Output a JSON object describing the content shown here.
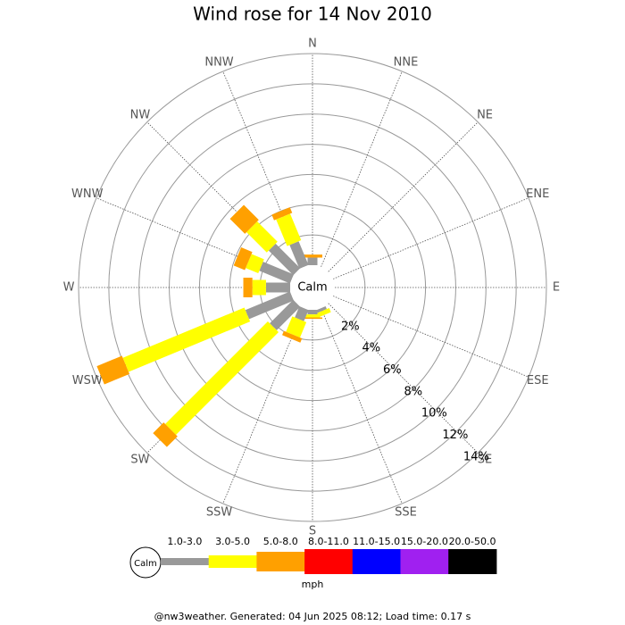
{
  "chart_data": {
    "type": "windrose",
    "title": "Wind rose for 14 Nov 2010",
    "center_label": "Calm",
    "unit": "mph",
    "footer": "@nw3weather. Generated: 04 Jun 2025 08:12; Load time: 0.17 s",
    "directions": [
      "N",
      "NNE",
      "NE",
      "ENE",
      "E",
      "ESE",
      "SE",
      "SSE",
      "S",
      "SSW",
      "SW",
      "WSW",
      "W",
      "WNW",
      "NW",
      "NNW"
    ],
    "rlim": [
      0,
      14
    ],
    "rticks": [
      {
        "value": 2,
        "label": "2%"
      },
      {
        "value": 4,
        "label": "4%"
      },
      {
        "value": 6,
        "label": "6%"
      },
      {
        "value": 8,
        "label": "8%"
      },
      {
        "value": 10,
        "label": "10%"
      },
      {
        "value": 12,
        "label": "12%"
      },
      {
        "value": 14,
        "label": "14%"
      }
    ],
    "series": [
      {
        "name": "1.0-3.0",
        "color": "#999999",
        "values": [
          0.5,
          0,
          0,
          0,
          0,
          0,
          0,
          0.2,
          0.3,
          0.8,
          2.2,
          3.2,
          1.6,
          2.2,
          2.3,
          1.7
        ]
      },
      {
        "name": "3.0-5.0",
        "color": "#ffff00",
        "values": [
          0,
          0,
          0,
          0,
          0,
          0,
          0,
          0.3,
          0.2,
          1.1,
          9.6,
          8.7,
          0.9,
          0.9,
          1.9,
          1.9
        ]
      },
      {
        "name": "5.0-8.0",
        "color": "#ffa000",
        "values": [
          0.2,
          0,
          0,
          0,
          0,
          0,
          0,
          0,
          0.1,
          0.3,
          1.0,
          1.8,
          0.6,
          0.8,
          1.4,
          0.4
        ]
      },
      {
        "name": "8.0-11.0",
        "color": "#ff0000",
        "values": [
          0,
          0,
          0,
          0,
          0,
          0,
          0,
          0,
          0,
          0,
          0,
          0,
          0,
          0,
          0,
          0
        ]
      },
      {
        "name": "11.0-15.0",
        "color": "#0000ff",
        "values": [
          0,
          0,
          0,
          0,
          0,
          0,
          0,
          0,
          0,
          0,
          0,
          0,
          0,
          0,
          0,
          0
        ]
      },
      {
        "name": "15.0-20.0",
        "color": "#a020f0",
        "values": [
          0,
          0,
          0,
          0,
          0,
          0,
          0,
          0,
          0,
          0,
          0,
          0,
          0,
          0,
          0,
          0
        ]
      },
      {
        "name": "20.0-50.0",
        "color": "#000000",
        "values": [
          0,
          0,
          0,
          0,
          0,
          0,
          0,
          0,
          0,
          0,
          0,
          0,
          0,
          0,
          0,
          0
        ]
      }
    ]
  }
}
